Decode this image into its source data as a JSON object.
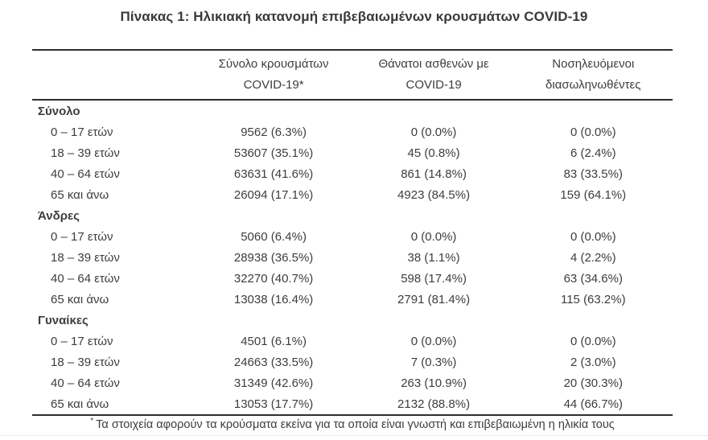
{
  "title": "Πίνακας 1: Ηλικιακή κατανομή επιβεβαιωμένων κρουσμάτων COVID-19",
  "colors": {
    "text": "#3d3d3d",
    "rule": "#2e2e2e",
    "background": "#ffffff"
  },
  "table": {
    "headers": [
      {
        "line1": "Σύνολο κρουσμάτων",
        "line2": "COVID-19*"
      },
      {
        "line1": "Θάνατοι ασθενών με",
        "line2": "COVID-19"
      },
      {
        "line1": "Νοσηλευόμενοι",
        "line2": "διασωληνωθέντες"
      }
    ],
    "sections": [
      {
        "name": "Σύνολο",
        "rows": [
          {
            "age": "0 – 17 ετών",
            "cases": "9562 (6.3%)",
            "deaths": "0 (0.0%)",
            "intubated": "0 (0.0%)"
          },
          {
            "age": "18 – 39 ετών",
            "cases": "53607 (35.1%)",
            "deaths": "45 (0.8%)",
            "intubated": "6 (2.4%)"
          },
          {
            "age": "40 – 64 ετών",
            "cases": "63631 (41.6%)",
            "deaths": "861 (14.8%)",
            "intubated": "83 (33.5%)"
          },
          {
            "age": "65 και άνω",
            "cases": "26094 (17.1%)",
            "deaths": "4923 (84.5%)",
            "intubated": "159 (64.1%)"
          }
        ]
      },
      {
        "name": "Άνδρες",
        "rows": [
          {
            "age": "0 – 17 ετών",
            "cases": "5060 (6.4%)",
            "deaths": "0 (0.0%)",
            "intubated": "0 (0.0%)"
          },
          {
            "age": "18 – 39 ετών",
            "cases": "28938 (36.5%)",
            "deaths": "38 (1.1%)",
            "intubated": "4 (2.2%)"
          },
          {
            "age": "40 – 64 ετών",
            "cases": "32270 (40.7%)",
            "deaths": "598 (17.4%)",
            "intubated": "63 (34.6%)"
          },
          {
            "age": "65 και άνω",
            "cases": "13038 (16.4%)",
            "deaths": "2791 (81.4%)",
            "intubated": "115 (63.2%)"
          }
        ]
      },
      {
        "name": "Γυναίκες",
        "rows": [
          {
            "age": "0 – 17 ετών",
            "cases": "4501 (6.1%)",
            "deaths": "0 (0.0%)",
            "intubated": "0 (0.0%)"
          },
          {
            "age": "18 – 39 ετών",
            "cases": "24663 (33.5%)",
            "deaths": "7 (0.3%)",
            "intubated": "2 (3.0%)"
          },
          {
            "age": "40 – 64 ετών",
            "cases": "31349 (42.6%)",
            "deaths": "263 (10.9%)",
            "intubated": "20 (30.3%)"
          },
          {
            "age": "65 και άνω",
            "cases": "13053 (17.7%)",
            "deaths": "2132 (88.8%)",
            "intubated": "44 (66.7%)"
          }
        ]
      }
    ]
  },
  "footnote": {
    "marker": "*",
    "text": "Τα στοιχεία αφορούν τα κρούσματα εκείνα για τα οποία είναι γνωστή και επιβεβαιωμένη η ηλικία τους"
  }
}
